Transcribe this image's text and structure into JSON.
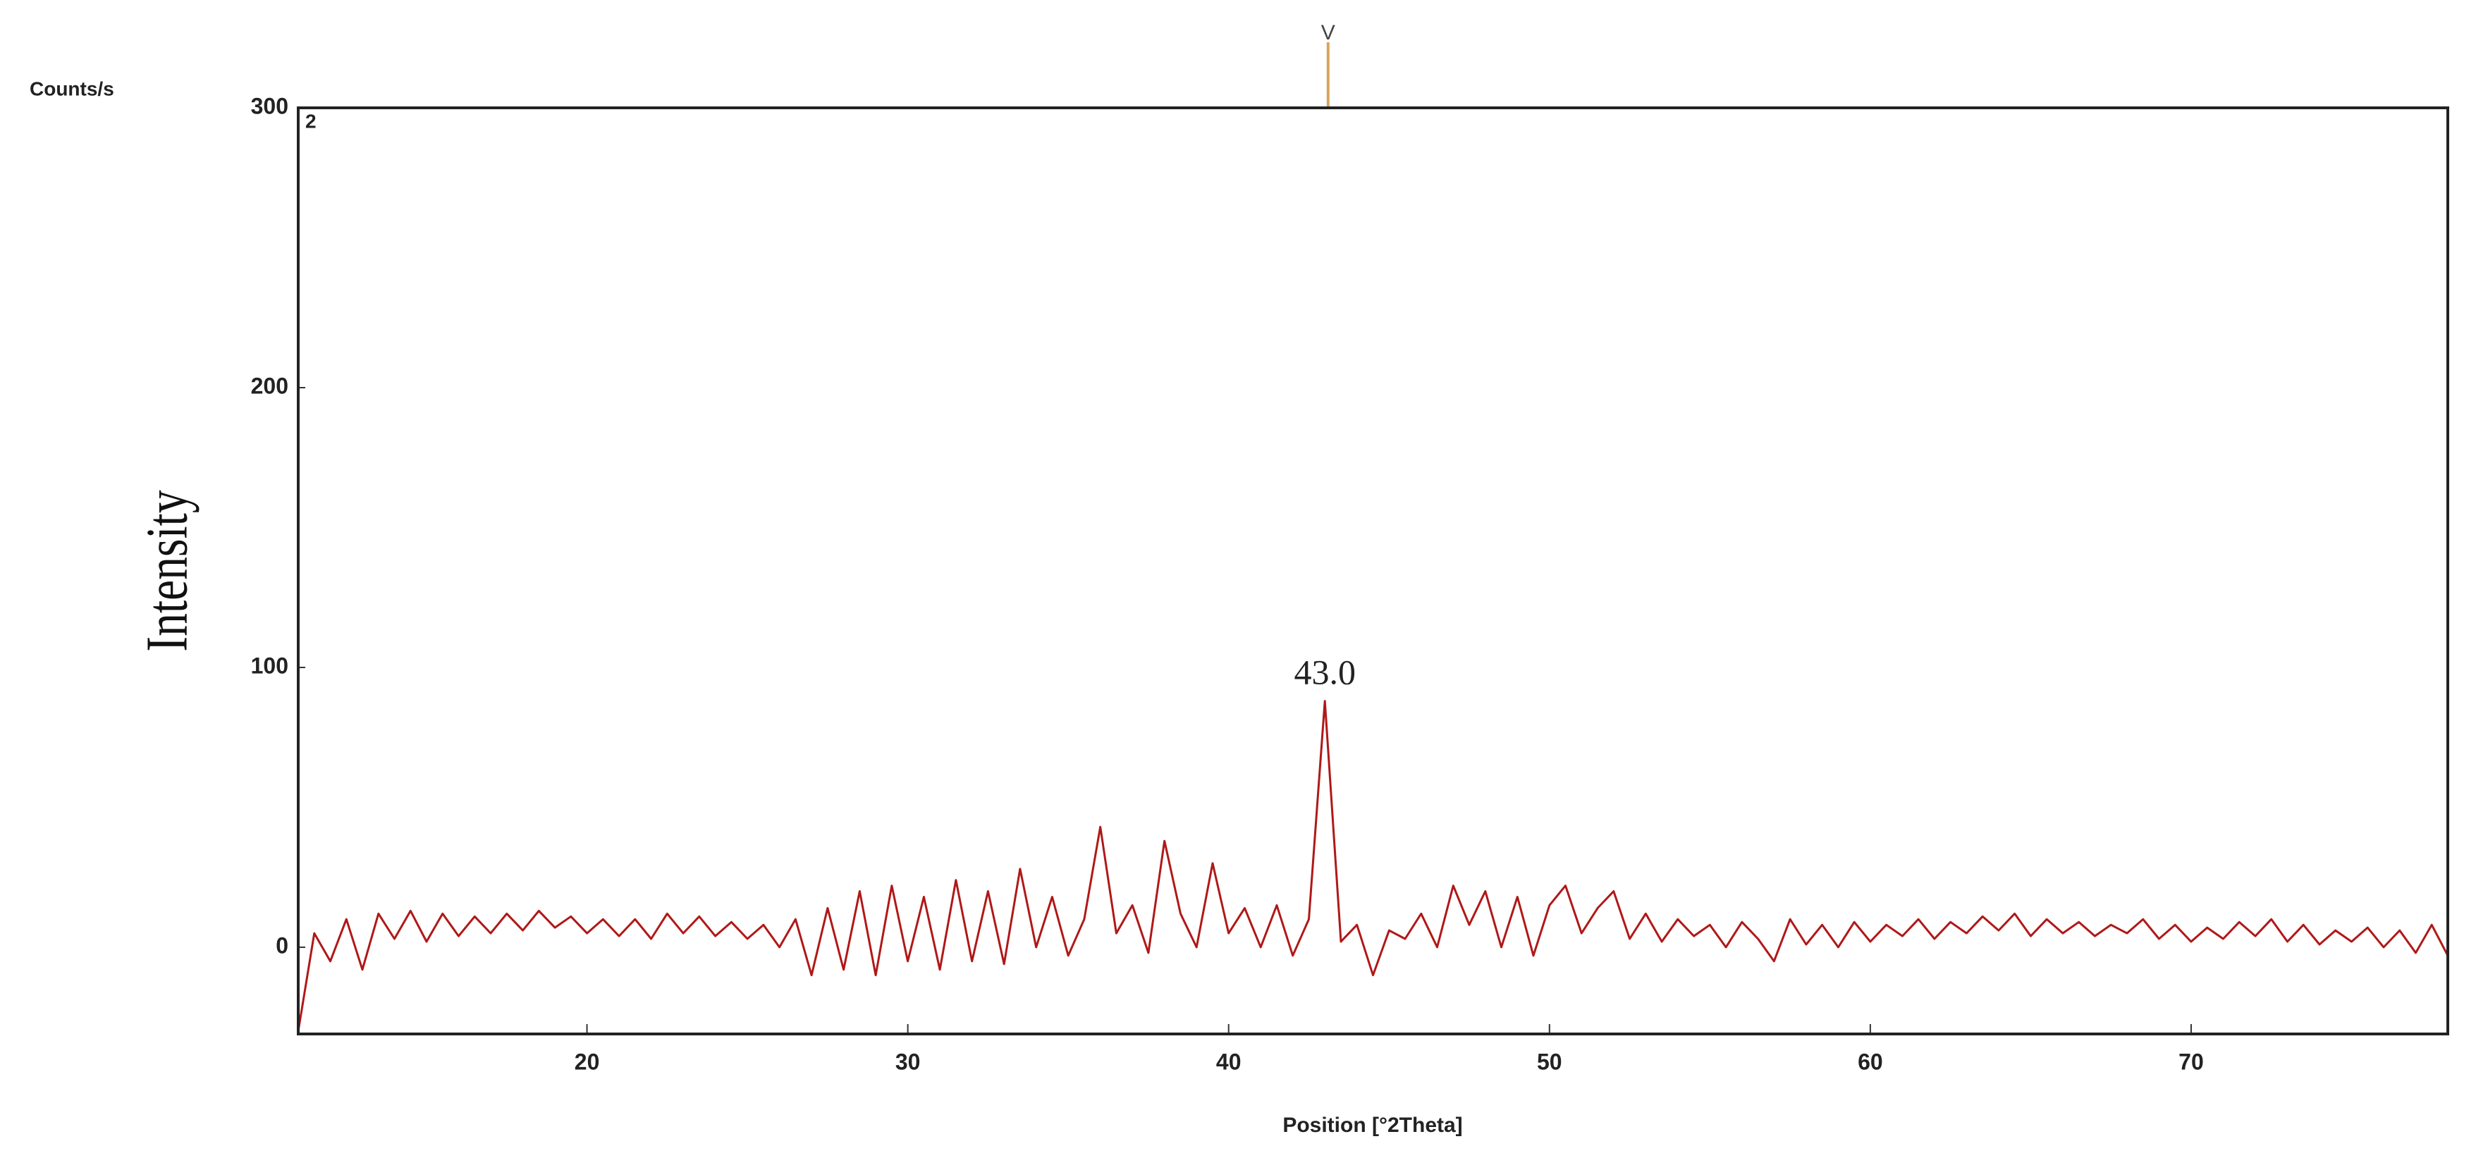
{
  "chart_data": {
    "type": "line",
    "y_unit_label": "Counts/s",
    "ylabel": "Intensity",
    "xlabel": "Position [°2Theta]",
    "panel_label": "2",
    "xlim": [
      11,
      78
    ],
    "ylim": [
      -31,
      300
    ],
    "xticks": [
      20,
      30,
      40,
      50,
      60,
      70
    ],
    "yticks": [
      0,
      100,
      200,
      300
    ],
    "reference_lines": [
      {
        "x": 43.1,
        "label": "V",
        "color": "#d9a45a"
      }
    ],
    "annotations": [
      {
        "text": "43.0",
        "x": 43.0,
        "y": 97
      }
    ],
    "series": [
      {
        "color": "#b01818",
        "x": [
          11,
          11.5,
          12,
          12.5,
          13,
          13.5,
          14,
          14.5,
          15,
          15.5,
          16,
          16.5,
          17,
          17.5,
          18,
          18.5,
          19,
          19.5,
          20,
          20.5,
          21,
          21.5,
          22,
          22.5,
          23,
          23.5,
          24,
          24.5,
          25,
          25.5,
          26,
          26.5,
          27,
          27.5,
          28,
          28.5,
          29,
          29.5,
          30,
          30.5,
          31,
          31.5,
          32,
          32.5,
          33,
          33.5,
          34,
          34.5,
          35,
          35.5,
          36,
          36.5,
          37,
          37.5,
          38,
          38.5,
          39,
          39.5,
          40,
          40.5,
          41,
          41.5,
          42,
          42.5,
          43,
          43.5,
          44,
          44.5,
          45,
          45.5,
          46,
          46.5,
          47,
          47.5,
          48,
          48.5,
          49,
          49.5,
          50,
          50.5,
          51,
          51.5,
          52,
          52.5,
          53,
          53.5,
          54,
          54.5,
          55,
          55.5,
          56,
          56.5,
          57,
          57.5,
          58,
          58.5,
          59,
          59.5,
          60,
          60.5,
          61,
          61.5,
          62,
          62.5,
          63,
          63.5,
          64,
          64.5,
          65,
          65.5,
          66,
          66.5,
          67,
          67.5,
          68,
          68.5,
          69,
          69.5,
          70,
          70.5,
          71,
          71.5,
          72,
          72.5,
          73,
          73.5,
          74,
          74.5,
          75,
          75.5,
          76,
          76.5,
          77,
          77.5,
          78
        ],
        "values": [
          -30,
          5,
          -5,
          10,
          -8,
          12,
          3,
          13,
          2,
          12,
          4,
          11,
          5,
          12,
          6,
          13,
          7,
          11,
          5,
          10,
          4,
          10,
          3,
          12,
          5,
          11,
          4,
          9,
          3,
          8,
          0,
          10,
          -10,
          14,
          -8,
          20,
          -10,
          22,
          -5,
          18,
          -8,
          24,
          -5,
          20,
          -6,
          28,
          0,
          18,
          -3,
          10,
          43,
          5,
          15,
          -2,
          38,
          12,
          0,
          30,
          5,
          14,
          0,
          15,
          -3,
          10,
          88,
          2,
          8,
          -10,
          6,
          3,
          12,
          0,
          22,
          8,
          20,
          0,
          18,
          -3,
          15,
          22,
          5,
          14,
          20,
          3,
          12,
          2,
          10,
          4,
          8,
          0,
          9,
          3,
          -5,
          10,
          1,
          8,
          0,
          9,
          2,
          8,
          4,
          10,
          3,
          9,
          5,
          11,
          6,
          12,
          4,
          10,
          5,
          9,
          4,
          8,
          5,
          10,
          3,
          8,
          2,
          7,
          3,
          9,
          4,
          10,
          2,
          8,
          1,
          6,
          2,
          7,
          0,
          6,
          -2,
          8,
          -3
        ]
      }
    ]
  }
}
